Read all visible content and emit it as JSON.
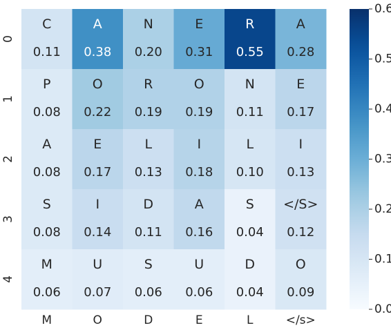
{
  "chart_data": {
    "type": "heatmap",
    "rows": [
      "0",
      "1",
      "2",
      "3",
      "4"
    ],
    "columns": [
      "M",
      "O",
      "D",
      "E",
      "L",
      "</s>"
    ],
    "cell_letters": [
      [
        "C",
        "A",
        "N",
        "E",
        "R",
        "A"
      ],
      [
        "P",
        "O",
        "R",
        "O",
        "N",
        "E"
      ],
      [
        "A",
        "E",
        "L",
        "I",
        "L",
        "I"
      ],
      [
        "S",
        "I",
        "D",
        "A",
        "S",
        "</S>"
      ],
      [
        "M",
        "U",
        "S",
        "U",
        "D",
        "O"
      ]
    ],
    "values": [
      [
        0.11,
        0.38,
        0.2,
        0.31,
        0.55,
        0.28
      ],
      [
        0.08,
        0.22,
        0.19,
        0.19,
        0.11,
        0.17
      ],
      [
        0.08,
        0.17,
        0.13,
        0.18,
        0.1,
        0.13
      ],
      [
        0.08,
        0.14,
        0.11,
        0.16,
        0.04,
        0.12
      ],
      [
        0.06,
        0.07,
        0.06,
        0.06,
        0.04,
        0.09
      ]
    ],
    "colorscale": "Blues",
    "vmin": 0.0,
    "vmax": 0.6,
    "colorbar_ticks": [
      "0.0",
      "0.1",
      "0.2",
      "0.3",
      "0.4",
      "0.5",
      "0.6"
    ],
    "grid": false
  }
}
